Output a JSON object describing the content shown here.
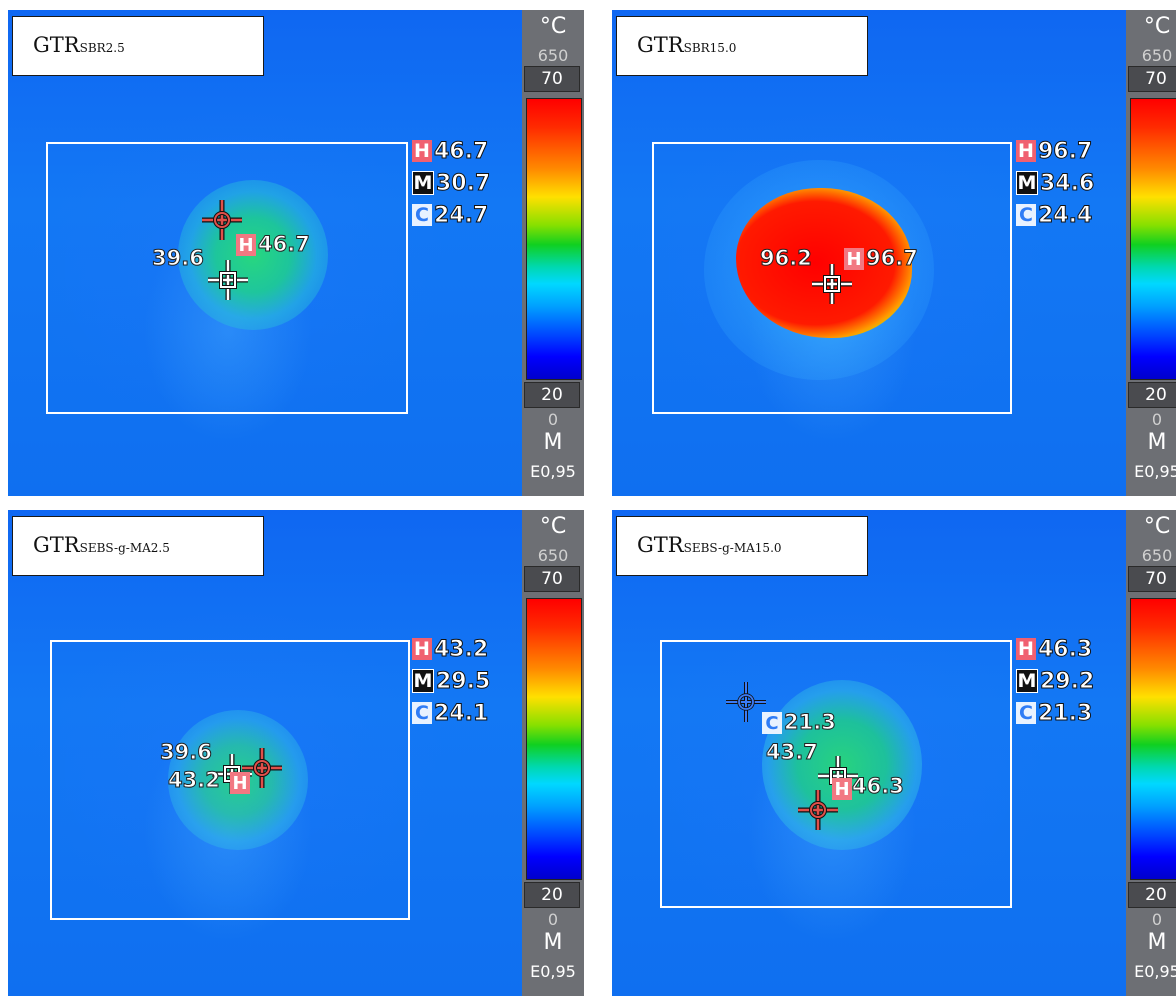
{
  "panels": [
    {
      "label_main": "GTR",
      "label_sub": "SBR2.5",
      "stats": {
        "high": "46.7",
        "mean": "30.7",
        "cold": "24.7"
      },
      "markers": {
        "v1": "39.6",
        "v2": "46.7"
      },
      "scale": {
        "unit": "°C",
        "range": "650",
        "max": "70",
        "min": "20",
        "zero": "0",
        "mode": "M",
        "emissivity": "E0,95"
      }
    },
    {
      "label_main": "GTR",
      "label_sub": "SBR15.0",
      "stats": {
        "high": "96.7",
        "mean": "34.6",
        "cold": "24.4"
      },
      "markers": {
        "v1": "96.2",
        "v2": "96.7"
      },
      "scale": {
        "unit": "°C",
        "range": "650",
        "max": "70",
        "min": "20",
        "zero": "0",
        "mode": "M",
        "emissivity": "E0,95"
      }
    },
    {
      "label_main": "GTR",
      "label_sub": "SEBS-g-MA2.5",
      "stats": {
        "high": "43.2",
        "mean": "29.5",
        "cold": "24.1"
      },
      "markers": {
        "v1": "39.6",
        "v2": "43.2"
      },
      "scale": {
        "unit": "°C",
        "range": "650",
        "max": "70",
        "min": "20",
        "zero": "0",
        "mode": "M",
        "emissivity": "E0,95"
      }
    },
    {
      "label_main": "GTR",
      "label_sub": "SEBS-g-MA15.0",
      "stats": {
        "high": "46.3",
        "mean": "29.2",
        "cold": "21.3"
      },
      "markers": {
        "v1": "21.3",
        "v2": "43.7",
        "v3": "46.3"
      },
      "scale": {
        "unit": "°C",
        "range": "650",
        "max": "70",
        "min": "20",
        "zero": "0",
        "mode": "M",
        "emissivity": "E0,95"
      }
    }
  ],
  "tag_letters": {
    "high": "H",
    "mean": "M",
    "cold": "C"
  },
  "colors": {
    "background_blue": "#0f67f2",
    "hot_red": "#ff0000",
    "warm_green": "#10d020",
    "crosshair_red": "#e0504a",
    "scale_gray": "#6d6f74"
  },
  "icons": [
    "hot-crosshair-icon",
    "center-crosshair-icon",
    "cold-crosshair-icon"
  ]
}
